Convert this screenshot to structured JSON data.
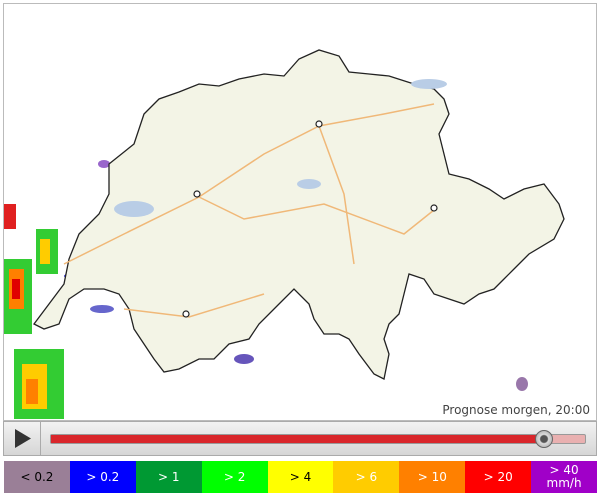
{
  "caption": "Prognose morgen, 20:00",
  "legend": [
    {
      "label": "< 0.2",
      "color": "#9a7f97",
      "text_color": "#000"
    },
    {
      "label": "> 0.2",
      "color": "#0000ff",
      "text_color": "#fff"
    },
    {
      "label": "> 1",
      "color": "#009933",
      "text_color": "#fff"
    },
    {
      "label": "> 2",
      "color": "#00ff00",
      "text_color": "#fff"
    },
    {
      "label": "> 4",
      "color": "#ffff00",
      "text_color": "#000"
    },
    {
      "label": "> 6",
      "color": "#ffcc00",
      "text_color": "#fff"
    },
    {
      "label": "> 10",
      "color": "#ff8000",
      "text_color": "#fff"
    },
    {
      "label": "> 20",
      "color": "#ff0000",
      "text_color": "#fff"
    },
    {
      "label": "> 40",
      "unit": "mm/h",
      "color": "#a000c8",
      "text_color": "#fff"
    }
  ]
}
